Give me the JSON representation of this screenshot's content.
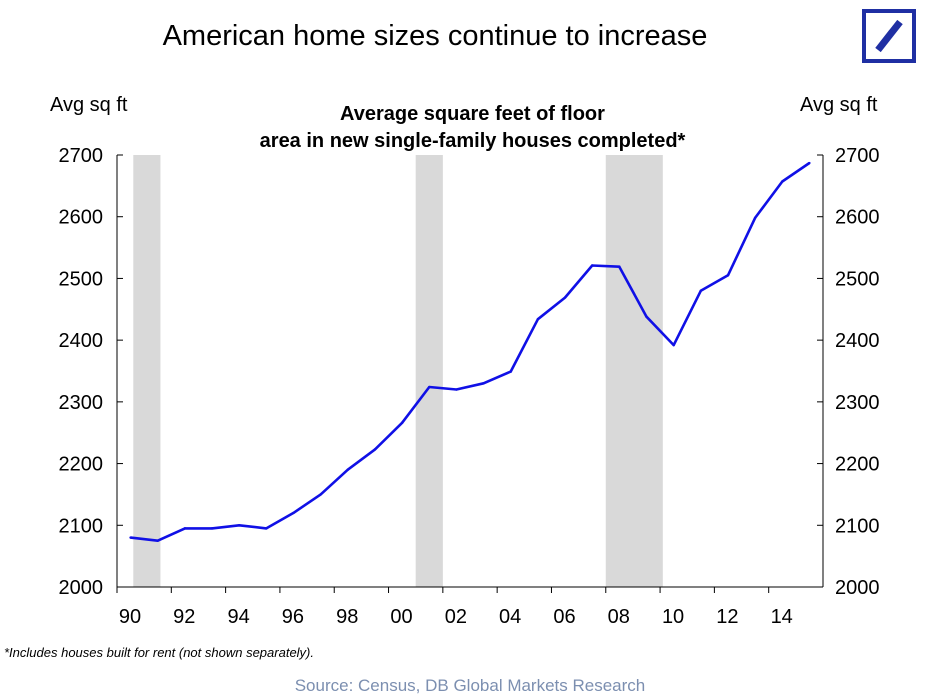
{
  "header": {
    "title": "American home sizes continue to increase"
  },
  "logo": {
    "name": "Deutsche Bank logo",
    "color": "#1f2fa3"
  },
  "chart_data": {
    "type": "line",
    "title": "Average square feet of floor area in new single-family houses completed*",
    "title_lines": [
      "Average square feet of floor",
      "area in new single-family houses completed*"
    ],
    "ylabel_left": "Avg sq ft",
    "ylabel_right": "Avg sq ft",
    "ylim": [
      2000,
      2700
    ],
    "yticks": [
      2000,
      2100,
      2200,
      2300,
      2400,
      2500,
      2600,
      2700
    ],
    "ytick_labels": [
      "2000",
      "2100",
      "2200",
      "2300",
      "2400",
      "2500",
      "2600",
      "2700"
    ],
    "xlim": [
      1990,
      2016
    ],
    "xticks": [
      1990,
      1992,
      1994,
      1996,
      1998,
      2000,
      2002,
      2004,
      2006,
      2008,
      2010,
      2012,
      2014
    ],
    "xtick_labels": [
      "90",
      "92",
      "94",
      "96",
      "98",
      "00",
      "02",
      "04",
      "06",
      "08",
      "10",
      "12",
      "14"
    ],
    "grid": false,
    "recession_bands": [
      [
        1990.6,
        1991.6
      ],
      [
        2001.0,
        2002.0
      ],
      [
        2008.0,
        2010.1
      ]
    ],
    "series": [
      {
        "name": "Average square feet",
        "color": "#1010e6",
        "x": [
          1990.5,
          1991.5,
          1992.5,
          1993.5,
          1994.5,
          1995.5,
          1996.5,
          1997.5,
          1998.5,
          1999.5,
          2000.5,
          2001.5,
          2002.5,
          2003.5,
          2004.5,
          2005.5,
          2006.5,
          2007.5,
          2008.5,
          2009.5,
          2010.5,
          2011.5,
          2012.5,
          2013.5,
          2014.5,
          2015.5
        ],
        "y": [
          2080,
          2075,
          2095,
          2095,
          2100,
          2095,
          2120,
          2150,
          2190,
          2223,
          2266,
          2324,
          2320,
          2330,
          2349,
          2434,
          2469,
          2521,
          2519,
          2438,
          2392,
          2480,
          2505,
          2598,
          2657,
          2687
        ]
      }
    ]
  },
  "footnote": "*Includes houses built for rent (not shown separately).",
  "source": "Source: Census, DB Global Markets Research"
}
